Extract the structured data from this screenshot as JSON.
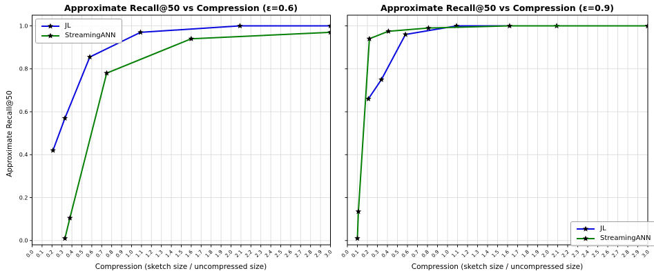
{
  "figure": {
    "background": "#ffffff",
    "grid_color": "#dcdcdc",
    "axis_color": "#000000",
    "marker_color": "#000000",
    "marker_shape": "star"
  },
  "chart_data": [
    {
      "type": "line",
      "title": "Approximate Recall@50 vs Compression (ε=0.6)",
      "xlabel": "Compression (sketch size / uncompressed size)",
      "ylabel": "Approximate Recall@50",
      "xlim": [
        0.0,
        3.0
      ],
      "ylim": [
        -0.02,
        1.05
      ],
      "grid": true,
      "legend_position": "upper-left",
      "show_ytick_labels": true,
      "xticks": [
        "0.0",
        "0.1",
        "0.2",
        "0.3",
        "0.4",
        "0.5",
        "0.6",
        "0.7",
        "0.8",
        "0.9",
        "1.0",
        "1.1",
        "1.2",
        "1.3",
        "1.4",
        "1.5",
        "1.6",
        "1.7",
        "1.8",
        "1.9",
        "2.0",
        "2.1",
        "2.2",
        "2.3",
        "2.4",
        "2.5",
        "2.6",
        "2.7",
        "2.8",
        "2.9",
        "3.0"
      ],
      "yticks": [
        "0.0",
        "0.2",
        "0.4",
        "0.6",
        "0.8",
        "1.0"
      ],
      "series": [
        {
          "name": "JL",
          "color": "#0b0bdf",
          "x": [
            0.21,
            0.33,
            0.58,
            1.09,
            2.09,
            3.0
          ],
          "y": [
            0.42,
            0.57,
            0.855,
            0.97,
            1.0,
            1.0
          ]
        },
        {
          "name": "StreamingANN",
          "color": "#078007",
          "x": [
            0.33,
            0.38,
            0.75,
            1.6,
            3.0
          ],
          "y": [
            0.01,
            0.105,
            0.78,
            0.94,
            0.97
          ]
        }
      ]
    },
    {
      "type": "line",
      "title": "Approximate Recall@50 vs Compression (ε=0.9)",
      "xlabel": "Compression (sketch size / uncompressed size)",
      "ylabel": "",
      "xlim": [
        0.0,
        3.0
      ],
      "ylim": [
        -0.02,
        1.05
      ],
      "grid": true,
      "legend_position": "lower-right",
      "show_ytick_labels": false,
      "xticks": [
        "0.0",
        "0.1",
        "0.2",
        "0.3",
        "0.4",
        "0.5",
        "0.6",
        "0.7",
        "0.8",
        "0.9",
        "1.0",
        "1.1",
        "1.2",
        "1.3",
        "1.4",
        "1.5",
        "1.6",
        "1.7",
        "1.8",
        "1.9",
        "2.0",
        "2.1",
        "2.2",
        "2.3",
        "2.4",
        "2.5",
        "2.6",
        "2.7",
        "2.8",
        "2.9",
        "3.0"
      ],
      "yticks": [
        "0.0",
        "0.2",
        "0.4",
        "0.6",
        "0.8",
        "1.0"
      ],
      "series": [
        {
          "name": "JL",
          "color": "#0b0bdf",
          "x": [
            0.21,
            0.34,
            0.58,
            1.09,
            2.09,
            3.0
          ],
          "y": [
            0.66,
            0.75,
            0.96,
            1.0,
            1.0,
            1.0
          ]
        },
        {
          "name": "StreamingANN",
          "color": "#078007",
          "x": [
            0.1,
            0.11,
            0.22,
            0.41,
            0.81,
            1.62,
            3.0
          ],
          "y": [
            0.01,
            0.135,
            0.94,
            0.975,
            0.99,
            1.0,
            1.0
          ]
        }
      ]
    }
  ]
}
